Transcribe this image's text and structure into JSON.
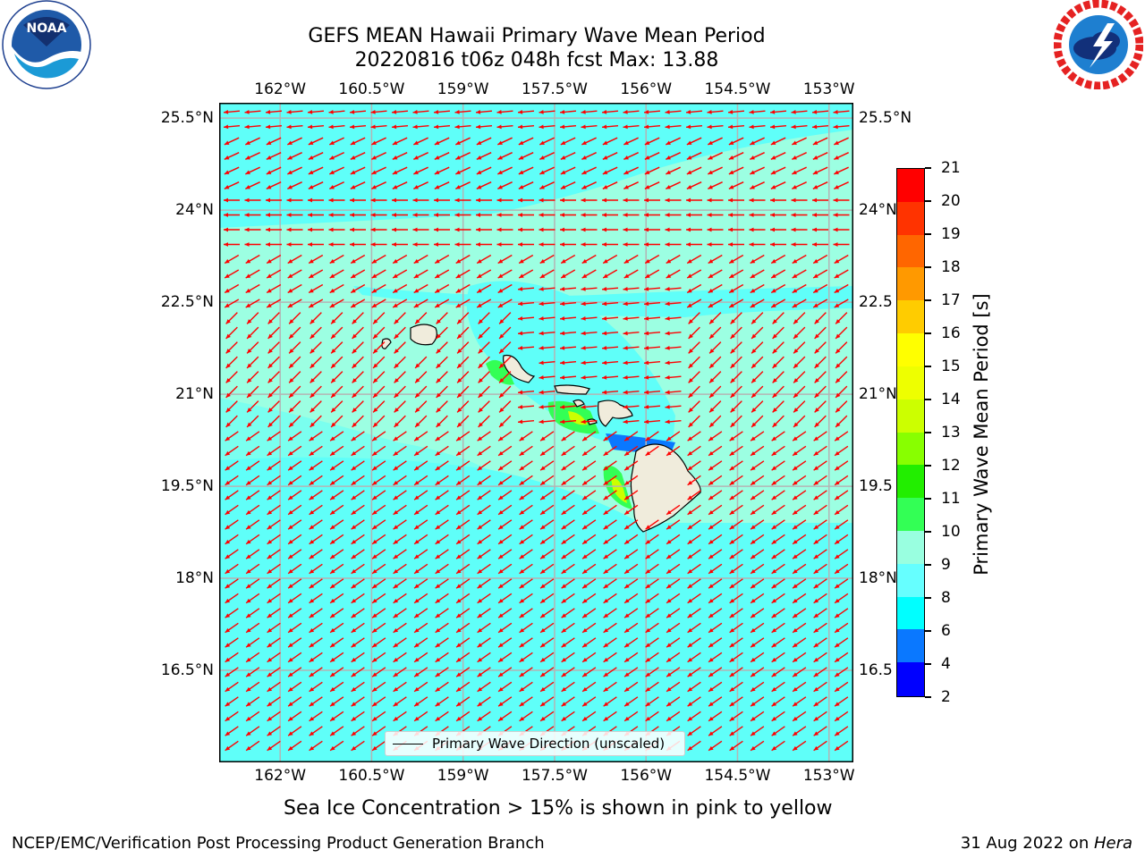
{
  "header": {
    "title_line1": "GEFS MEAN Hawaii Primary Wave Mean Period",
    "title_line2": "20220816 t06z 048h fcst   Max: 13.88"
  },
  "logos": {
    "noaa_text": "NOAA",
    "noaa_ring_text": "NATIONAL OCEANIC AND ATMOSPHERIC ADMINISTRATION · U.S. DEPARTMENT OF COMMERCE",
    "nws_ring_text": "NATIONAL WEATHER SERVICE"
  },
  "axes": {
    "x_ticks": [
      "162°W",
      "160.5°W",
      "159°W",
      "157.5°W",
      "156°W",
      "154.5°W",
      "153°W"
    ],
    "x_tick_values": [
      -162,
      -160.5,
      -159,
      -157.5,
      -156,
      -154.5,
      -153
    ],
    "y_ticks_left": [
      "25.5°N",
      "24°N",
      "22.5°N",
      "21°N",
      "19.5°N",
      "18°N",
      "16.5°N"
    ],
    "y_ticks_right": [
      "25.5°N",
      "24°N",
      "22.5",
      "21°N",
      "19.5",
      "18°N",
      "16.5"
    ],
    "y_tick_values": [
      25.5,
      24,
      22.5,
      21,
      19.5,
      18,
      16.5
    ],
    "lon_range": [
      -163,
      -152.6
    ],
    "lat_range": [
      15,
      25.75
    ],
    "grid": true
  },
  "legend": {
    "label": "Primary Wave Direction (unscaled)",
    "placement": "bottom-center"
  },
  "colorbar": {
    "label": "Primary Wave Mean Period [s]",
    "ticks": [
      "2",
      "4",
      "6",
      "8",
      "9",
      "10",
      "11",
      "12",
      "13",
      "14",
      "15",
      "16",
      "17",
      "18",
      "19",
      "20",
      "21"
    ],
    "colors": [
      "#0000ff",
      "#0a78ff",
      "#00ffff",
      "#66ffff",
      "#99ffe0",
      "#33ff55",
      "#22ee00",
      "#88ff00",
      "#ccff00",
      "#eeff00",
      "#ffff00",
      "#ffcc00",
      "#ff9900",
      "#ff6600",
      "#ff3300",
      "#ff0000"
    ]
  },
  "colors": {
    "ocean_cyan": "#5ffff9",
    "ocean_mint": "#9cffe2",
    "land": "#f0ecdc",
    "arrow": "#ff0000",
    "grid": "#b4b4b4"
  },
  "caption": "Sea Ice Concentration > 15% is shown in pink to yellow",
  "footer": {
    "left": "NCEP/EMC/Verification Post Processing Product Generation Branch",
    "right_prefix": "31 Aug 2022 on ",
    "right_host": "Hera"
  }
}
